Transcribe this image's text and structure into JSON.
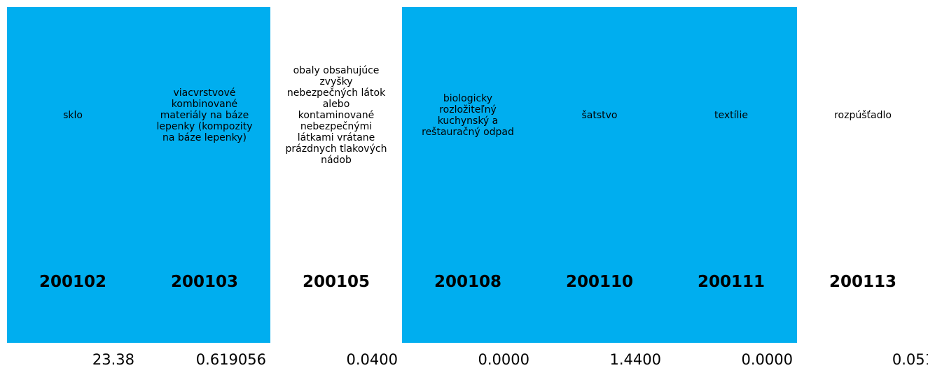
{
  "items": [
    {
      "name": "sklo",
      "code": "200102",
      "value": "23.38",
      "highlighted": true
    },
    {
      "name": "viacvrstvové kombinované materiály na báze lepenky  (kompozity na báze lepenky)",
      "code": "200103",
      "value": "0.619056",
      "highlighted": true
    },
    {
      "name": "obaly obsahujúce zvyšky nebezpečných látok alebo kontaminované nebezpečnými látkami vrátane prázdnych tlakových nádob",
      "code": "200105",
      "value": "0.0400",
      "highlighted": false
    },
    {
      "name": "biologicky rozložiteľný kuchynský a reštauračný odpad",
      "code": "200108",
      "value": "0.0000",
      "highlighted": true
    },
    {
      "name": "šatstvo",
      "code": "200110",
      "value": "1.4400",
      "highlighted": true
    },
    {
      "name": "textílie",
      "code": "200111",
      "value": "0.0000",
      "highlighted": true
    },
    {
      "name": "rozpúšťadlo",
      "code": "200113",
      "value": "0.051",
      "highlighted": false
    }
  ]
}
